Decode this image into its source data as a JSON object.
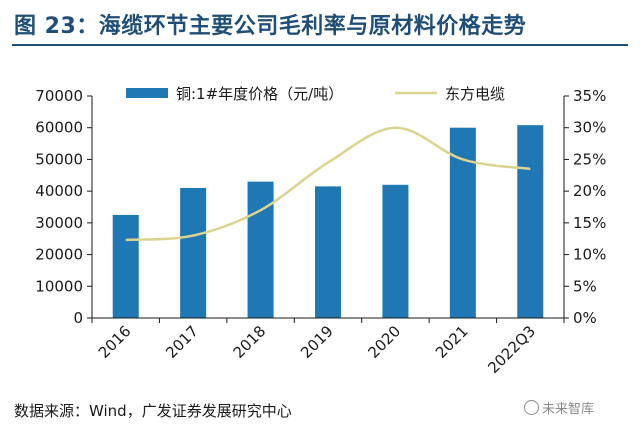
{
  "header": {
    "title": "图 23：海缆环节主要公司毛利率与原材料价格走势"
  },
  "footer": {
    "source": "数据来源：Wind，广发证券发展研究中心",
    "watermark": "未来智库"
  },
  "colors": {
    "bar": "#1f77b4",
    "line": "#dcd48e",
    "title": "#1f4e79"
  },
  "chart_data": {
    "type": "bar",
    "categories": [
      "2016",
      "2017",
      "2018",
      "2019",
      "2020",
      "2021",
      "2022Q3"
    ],
    "series": [
      {
        "name": "铜:1#年度价格（元/吨）",
        "type": "bar",
        "axis": "left",
        "values": [
          32500,
          41000,
          43000,
          41500,
          42000,
          60000,
          60800
        ]
      },
      {
        "name": "东方电缆",
        "type": "line",
        "axis": "right",
        "values": [
          0.123,
          0.13,
          0.17,
          0.245,
          0.3,
          0.25,
          0.235
        ]
      }
    ],
    "y_left": {
      "min": 0,
      "max": 70000,
      "step": 10000,
      "ticks": [
        "0",
        "10000",
        "20000",
        "30000",
        "40000",
        "50000",
        "60000",
        "70000"
      ]
    },
    "y_right": {
      "min": 0,
      "max": 0.35,
      "step": 0.05,
      "ticks": [
        "0%",
        "5%",
        "10%",
        "15%",
        "20%",
        "25%",
        "30%",
        "35%"
      ]
    },
    "legend": "top",
    "grid": false
  }
}
